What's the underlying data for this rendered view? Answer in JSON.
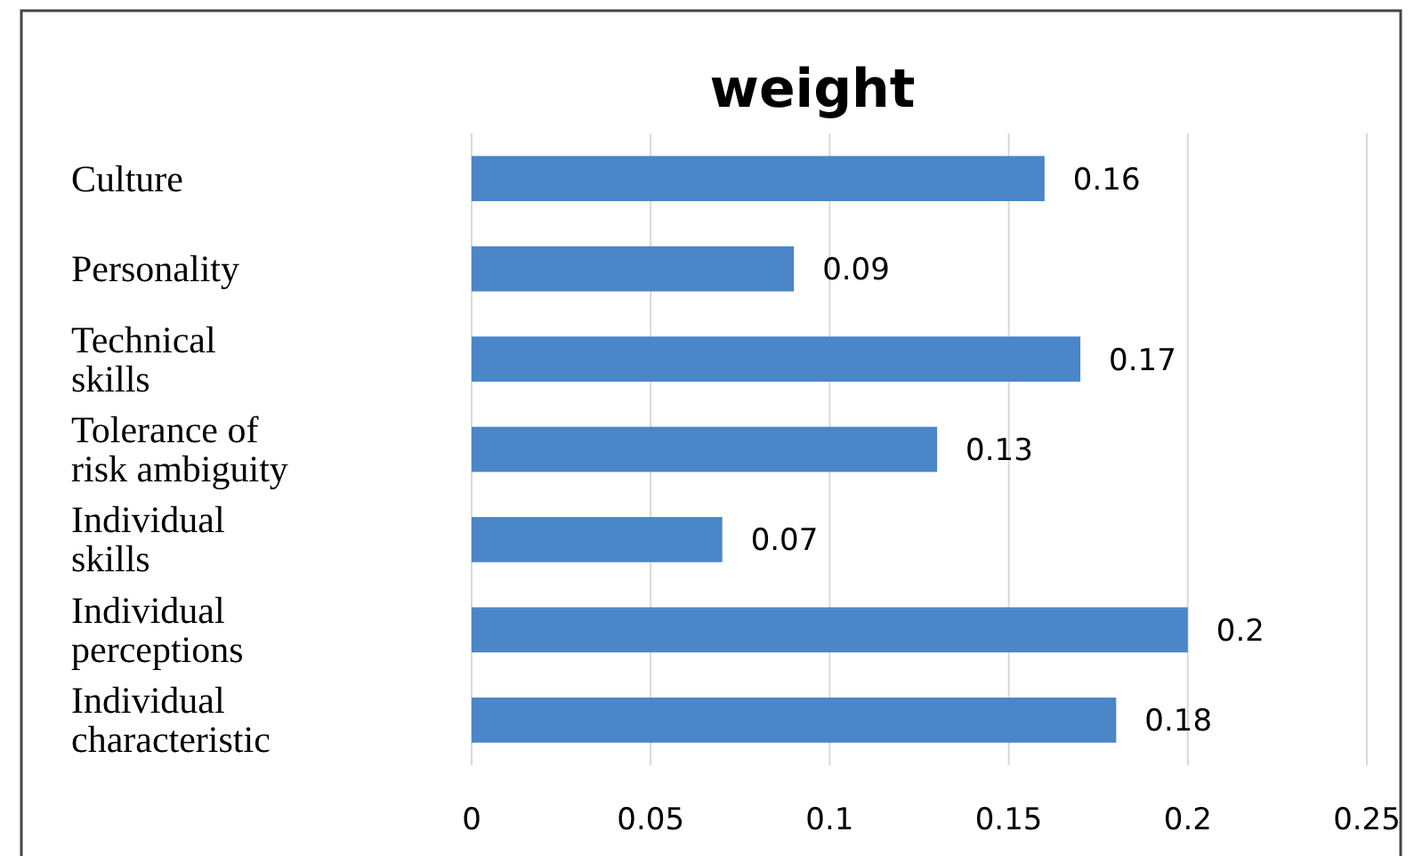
{
  "chart_data": {
    "type": "bar",
    "orientation": "horizontal",
    "title": "weight",
    "categories": [
      "Culture",
      "Personality",
      "Technical skills",
      "Tolerance of risk ambiguity",
      "Individual skills",
      "Individual perceptions",
      "Individual characteristic"
    ],
    "values": [
      0.16,
      0.09,
      0.17,
      0.13,
      0.07,
      0.2,
      0.18
    ],
    "color": "#4a86c8",
    "xlim": [
      0,
      0.25
    ],
    "xticks": [
      0,
      0.05,
      0.1,
      0.15,
      0.2,
      0.25
    ],
    "grid": "x",
    "data_labels": true
  }
}
